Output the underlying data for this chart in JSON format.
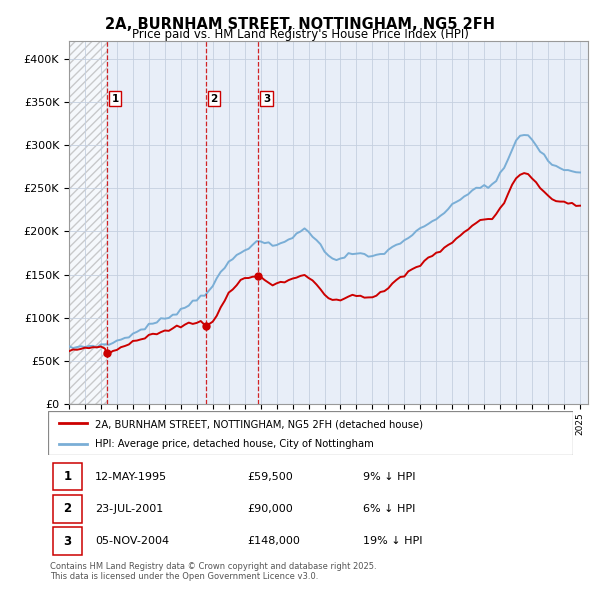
{
  "title": "2A, BURNHAM STREET, NOTTINGHAM, NG5 2FH",
  "subtitle": "Price paid vs. HM Land Registry's House Price Index (HPI)",
  "legend_line1": "2A, BURNHAM STREET, NOTTINGHAM, NG5 2FH (detached house)",
  "legend_line2": "HPI: Average price, detached house, City of Nottingham",
  "footnote": "Contains HM Land Registry data © Crown copyright and database right 2025.\nThis data is licensed under the Open Government Licence v3.0.",
  "sale_color": "#cc0000",
  "hpi_color": "#7aaed6",
  "background_color": "#e8eef8",
  "ylim": [
    0,
    420000
  ],
  "yticks": [
    0,
    50000,
    100000,
    150000,
    200000,
    250000,
    300000,
    350000,
    400000
  ],
  "xlim_start": 1993.0,
  "xlim_end": 2025.5,
  "sale_points": [
    {
      "year": 1995.36,
      "price": 59500,
      "label": "1"
    },
    {
      "year": 2001.56,
      "price": 90000,
      "label": "2"
    },
    {
      "year": 2004.85,
      "price": 148000,
      "label": "3"
    }
  ],
  "sale_label_info": [
    {
      "num": "1",
      "date": "12-MAY-1995",
      "price": "£59,500",
      "pct": "9% ↓ HPI"
    },
    {
      "num": "2",
      "date": "23-JUL-2001",
      "price": "£90,000",
      "pct": "6% ↓ HPI"
    },
    {
      "num": "3",
      "date": "05-NOV-2004",
      "price": "£148,000",
      "pct": "19% ↓ HPI"
    }
  ],
  "hpi_years": [
    1993,
    1993.25,
    1993.5,
    1993.75,
    1994,
    1994.25,
    1994.5,
    1994.75,
    1995,
    1995.25,
    1995.5,
    1995.75,
    1996,
    1996.25,
    1996.5,
    1996.75,
    1997,
    1997.25,
    1997.5,
    1997.75,
    1998,
    1998.25,
    1998.5,
    1998.75,
    1999,
    1999.25,
    1999.5,
    1999.75,
    2000,
    2000.25,
    2000.5,
    2000.75,
    2001,
    2001.25,
    2001.5,
    2001.75,
    2002,
    2002.25,
    2002.5,
    2002.75,
    2003,
    2003.25,
    2003.5,
    2003.75,
    2004,
    2004.25,
    2004.5,
    2004.75,
    2005,
    2005.25,
    2005.5,
    2005.75,
    2006,
    2006.25,
    2006.5,
    2006.75,
    2007,
    2007.25,
    2007.5,
    2007.75,
    2008,
    2008.25,
    2008.5,
    2008.75,
    2009,
    2009.25,
    2009.5,
    2009.75,
    2010,
    2010.25,
    2010.5,
    2010.75,
    2011,
    2011.25,
    2011.5,
    2011.75,
    2012,
    2012.25,
    2012.5,
    2012.75,
    2013,
    2013.25,
    2013.5,
    2013.75,
    2014,
    2014.25,
    2014.5,
    2014.75,
    2015,
    2015.25,
    2015.5,
    2015.75,
    2016,
    2016.25,
    2016.5,
    2016.75,
    2017,
    2017.25,
    2017.5,
    2017.75,
    2018,
    2018.25,
    2018.5,
    2018.75,
    2019,
    2019.25,
    2019.5,
    2019.75,
    2020,
    2020.25,
    2020.5,
    2020.75,
    2021,
    2021.25,
    2021.5,
    2021.75,
    2022,
    2022.25,
    2022.5,
    2022.75,
    2023,
    2023.25,
    2023.5,
    2023.75,
    2024,
    2024.25,
    2024.5,
    2024.75,
    2025
  ],
  "hpi_values": [
    65000,
    65500,
    66000,
    66500,
    67000,
    67200,
    67500,
    67800,
    68000,
    68500,
    69500,
    71000,
    73000,
    75000,
    77000,
    79000,
    81000,
    83500,
    86000,
    88500,
    91000,
    93000,
    95000,
    97000,
    99000,
    101500,
    104000,
    106500,
    109000,
    112000,
    115000,
    118500,
    122000,
    125000,
    128000,
    132000,
    138000,
    144000,
    151000,
    158000,
    164000,
    168000,
    172000,
    176000,
    180000,
    182000,
    184000,
    186000,
    188000,
    187000,
    185000,
    183000,
    184000,
    186000,
    188000,
    191000,
    194000,
    197000,
    200000,
    202000,
    200000,
    196000,
    190000,
    183000,
    177000,
    173000,
    170000,
    168000,
    169000,
    171000,
    173000,
    174000,
    174000,
    173000,
    172000,
    171000,
    171000,
    172000,
    174000,
    176000,
    178000,
    181000,
    184000,
    187000,
    190000,
    193000,
    196000,
    199000,
    202000,
    205000,
    208000,
    211000,
    214000,
    218000,
    222000,
    226000,
    229000,
    233000,
    237000,
    241000,
    244000,
    247000,
    250000,
    252000,
    253000,
    251000,
    253000,
    258000,
    266000,
    274000,
    284000,
    294000,
    304000,
    310000,
    313000,
    311000,
    306000,
    300000,
    293000,
    287000,
    282000,
    278000,
    275000,
    273000,
    271000,
    270000,
    269000,
    268000,
    267000
  ],
  "red_years": [
    1993,
    1993.25,
    1993.5,
    1993.75,
    1994,
    1994.25,
    1994.5,
    1994.75,
    1995,
    1995.25,
    1995.36,
    1995.5,
    1995.75,
    1996,
    1996.25,
    1996.5,
    1996.75,
    1997,
    1997.25,
    1997.5,
    1997.75,
    1998,
    1998.25,
    1998.5,
    1998.75,
    1999,
    1999.25,
    1999.5,
    1999.75,
    2000,
    2000.25,
    2000.5,
    2000.75,
    2001,
    2001.25,
    2001.56,
    2001.75,
    2002,
    2002.25,
    2002.5,
    2002.75,
    2003,
    2003.25,
    2003.5,
    2003.75,
    2004,
    2004.25,
    2004.5,
    2004.75,
    2004.85,
    2005,
    2005.25,
    2005.5,
    2005.75,
    2006,
    2006.25,
    2006.5,
    2006.75,
    2007,
    2007.25,
    2007.5,
    2007.75,
    2008,
    2008.25,
    2008.5,
    2008.75,
    2009,
    2009.25,
    2009.5,
    2009.75,
    2010,
    2010.25,
    2010.5,
    2010.75,
    2011,
    2011.25,
    2011.5,
    2011.75,
    2012,
    2012.25,
    2012.5,
    2012.75,
    2013,
    2013.25,
    2013.5,
    2013.75,
    2014,
    2014.25,
    2014.5,
    2014.75,
    2015,
    2015.25,
    2015.5,
    2015.75,
    2016,
    2016.25,
    2016.5,
    2016.75,
    2017,
    2017.25,
    2017.5,
    2017.75,
    2018,
    2018.25,
    2018.5,
    2018.75,
    2019,
    2019.25,
    2019.5,
    2019.75,
    2020,
    2020.25,
    2020.5,
    2020.75,
    2021,
    2021.25,
    2021.5,
    2021.75,
    2022,
    2022.25,
    2022.5,
    2022.75,
    2023,
    2023.25,
    2023.5,
    2023.75,
    2024,
    2024.25,
    2024.5,
    2024.75,
    2025
  ],
  "red_values": [
    62000,
    62500,
    63000,
    63500,
    64000,
    64300,
    64600,
    64900,
    65200,
    65400,
    59500,
    60000,
    61000,
    63000,
    65000,
    67000,
    69000,
    71000,
    73000,
    75000,
    77000,
    79000,
    80500,
    82000,
    83500,
    85000,
    86500,
    88000,
    89500,
    90500,
    91500,
    92500,
    93500,
    94500,
    96000,
    90000,
    92000,
    97000,
    103000,
    112000,
    120000,
    128000,
    133000,
    138000,
    142000,
    146000,
    147000,
    147500,
    148000,
    148000,
    147000,
    144000,
    141000,
    138000,
    138500,
    139500,
    141000,
    143000,
    145000,
    147000,
    149000,
    150000,
    148000,
    144000,
    138000,
    132000,
    127000,
    123000,
    120000,
    119000,
    121000,
    123000,
    125000,
    126000,
    126000,
    125000,
    124000,
    123000,
    124000,
    126000,
    129000,
    132000,
    135000,
    139000,
    143000,
    147000,
    150000,
    153000,
    156000,
    159000,
    162000,
    165000,
    168000,
    171000,
    174000,
    177000,
    181000,
    185000,
    188000,
    192000,
    196000,
    200000,
    203000,
    207000,
    210000,
    213000,
    215000,
    214000,
    216000,
    220000,
    227000,
    235000,
    244000,
    253000,
    261000,
    266000,
    268000,
    266000,
    261000,
    256000,
    250000,
    245000,
    241000,
    238000,
    236000,
    235000,
    234000,
    233000,
    232000,
    231000,
    230000
  ]
}
